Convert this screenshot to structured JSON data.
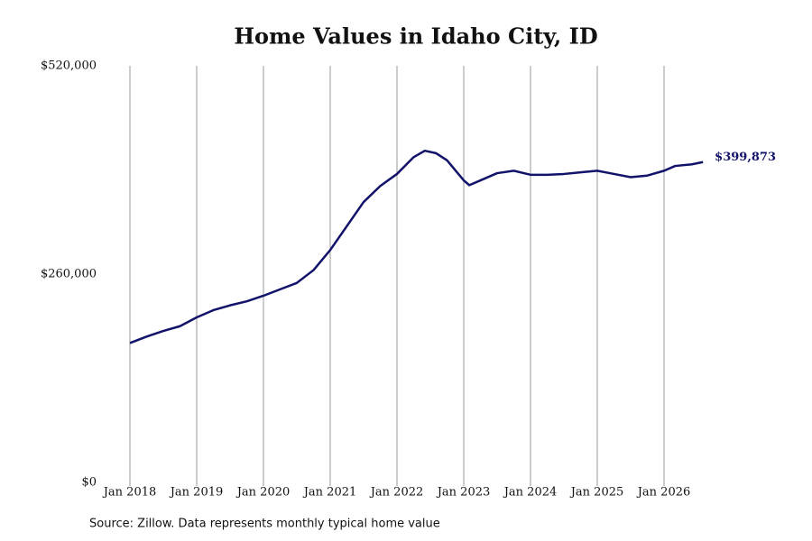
{
  "chart_data": {
    "type": "line",
    "title": "Home Values in Idaho City, ID",
    "source": "Source: Zillow. Data represents monthly typical home value",
    "x": [
      "2018-01",
      "2018-04",
      "2018-07",
      "2018-10",
      "2019-01",
      "2019-04",
      "2019-07",
      "2019-10",
      "2020-01",
      "2020-04",
      "2020-07",
      "2020-10",
      "2021-01",
      "2021-04",
      "2021-07",
      "2021-10",
      "2022-01",
      "2022-04",
      "2022-06",
      "2022-08",
      "2022-10",
      "2023-01",
      "2023-02",
      "2023-04",
      "2023-07",
      "2023-10",
      "2024-01",
      "2024-04",
      "2024-07",
      "2024-10",
      "2025-01",
      "2025-04",
      "2025-07",
      "2025-10",
      "2026-01",
      "2026-03",
      "2026-06",
      "2026-08"
    ],
    "series": [
      {
        "name": "Home value",
        "color": "#12126b",
        "values": [
          174000,
          182000,
          189000,
          195000,
          206000,
          215000,
          221000,
          226000,
          233000,
          241000,
          249000,
          265000,
          290000,
          320000,
          350000,
          370000,
          385000,
          406000,
          414000,
          411000,
          402000,
          377000,
          371000,
          377000,
          386000,
          389000,
          384000,
          384000,
          385000,
          387000,
          389000,
          385000,
          381000,
          383000,
          389000,
          395000,
          397000,
          399873
        ],
        "value_labels": [
          null,
          null,
          null,
          null,
          null,
          null,
          null,
          null,
          null,
          null,
          null,
          null,
          null,
          null,
          null,
          null,
          null,
          null,
          null,
          null,
          null,
          null,
          null,
          null,
          null,
          null,
          null,
          null,
          null,
          null,
          null,
          null,
          null,
          null,
          null,
          null,
          null,
          "$399,873"
        ]
      }
    ],
    "xlim": [
      "2017-07",
      "2027-07"
    ],
    "xticks": [
      {
        "value": "2018-01",
        "label": "Jan 2018"
      },
      {
        "value": "2019-01",
        "label": "Jan 2019"
      },
      {
        "value": "2020-01",
        "label": "Jan 2020"
      },
      {
        "value": "2021-01",
        "label": "Jan 2021"
      },
      {
        "value": "2022-01",
        "label": "Jan 2022"
      },
      {
        "value": "2023-01",
        "label": "Jan 2023"
      },
      {
        "value": "2024-01",
        "label": "Jan 2024"
      },
      {
        "value": "2025-01",
        "label": "Jan 2025"
      },
      {
        "value": "2026-01",
        "label": "Jan 2026"
      }
    ],
    "ylim": [
      0,
      520000
    ],
    "yticks": [
      {
        "value": 0,
        "label": "$0"
      },
      {
        "value": 260000,
        "label": "$260,000"
      },
      {
        "value": 520000,
        "label": "$520,000"
      }
    ],
    "grid": "x"
  }
}
